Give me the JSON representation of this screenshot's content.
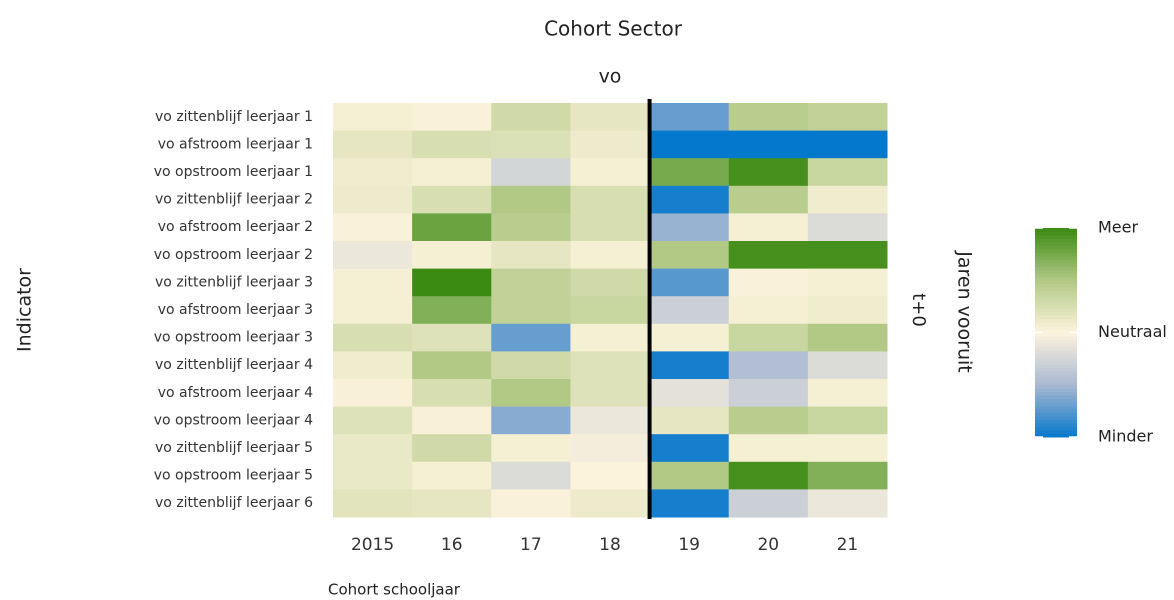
{
  "chart_data": {
    "type": "heatmap",
    "title": "Cohort Sector",
    "facet_top": "vo",
    "facet_right": "t+0",
    "facet_right_title": "Jaren vooruit",
    "y_label": "Indicator",
    "x_label": "Cohort schooljaar",
    "categories": [
      "2015",
      "16",
      "17",
      "18",
      "19",
      "20",
      "21"
    ],
    "rows": [
      "vo zittenblijf leerjaar 1",
      "vo afstroom leerjaar 1",
      "vo opstroom leerjaar 1",
      "vo zittenblijf leerjaar 2",
      "vo afstroom leerjaar 2",
      "vo opstroom leerjaar 2",
      "vo zittenblijf leerjaar 3",
      "vo afstroom leerjaar 3",
      "vo opstroom leerjaar 3",
      "vo zittenblijf leerjaar 4",
      "vo afstroom leerjaar 4",
      "vo opstroom leerjaar 4",
      "vo zittenblijf leerjaar 5",
      "vo opstroom leerjaar 5",
      "vo zittenblijf leerjaar 6"
    ],
    "values": [
      [
        0.05,
        0.02,
        0.3,
        0.15,
        -0.7,
        0.45,
        0.4
      ],
      [
        0.15,
        0.25,
        0.22,
        0.1,
        -1,
        -1,
        -1
      ],
      [
        0.08,
        0.05,
        -0.25,
        0.05,
        0.75,
        0.95,
        0.35
      ],
      [
        0.1,
        0.25,
        0.5,
        0.25,
        -0.95,
        0.45,
        0.08
      ],
      [
        0.02,
        0.8,
        0.45,
        0.25,
        -0.55,
        0.05,
        -0.2
      ],
      [
        -0.1,
        0.05,
        0.15,
        0.05,
        0.5,
        0.95,
        0.95
      ],
      [
        0.05,
        1,
        0.4,
        0.3,
        -0.75,
        0.02,
        0.05
      ],
      [
        0.05,
        0.7,
        0.4,
        0.35,
        -0.3,
        0.05,
        0.08
      ],
      [
        0.25,
        0.2,
        -0.7,
        0.05,
        0.05,
        0.35,
        0.5
      ],
      [
        0.08,
        0.5,
        0.3,
        0.2,
        -0.95,
        -0.45,
        -0.2
      ],
      [
        0.03,
        0.25,
        0.5,
        0.2,
        -0.15,
        -0.3,
        0.05
      ],
      [
        0.2,
        0.03,
        -0.6,
        -0.1,
        0.15,
        0.45,
        0.35
      ],
      [
        0.12,
        0.3,
        0.05,
        -0.05,
        -0.95,
        0.05,
        0.05
      ],
      [
        0.12,
        0.05,
        -0.2,
        0,
        0.5,
        0.95,
        0.7
      ],
      [
        0.18,
        0.15,
        0.02,
        0.1,
        -0.95,
        -0.3,
        -0.1
      ]
    ],
    "zlim": [
      -1,
      1
    ],
    "colors": [
      "#0478cc",
      "#a9b8d2",
      "#fcf3dc",
      "#b2c986",
      "#3b8a12"
    ],
    "legend_ticks": [
      {
        "value": 1,
        "label": "Meer"
      },
      {
        "value": 0,
        "label": "Neutraal"
      },
      {
        "value": -1,
        "label": "Minder"
      }
    ]
  }
}
